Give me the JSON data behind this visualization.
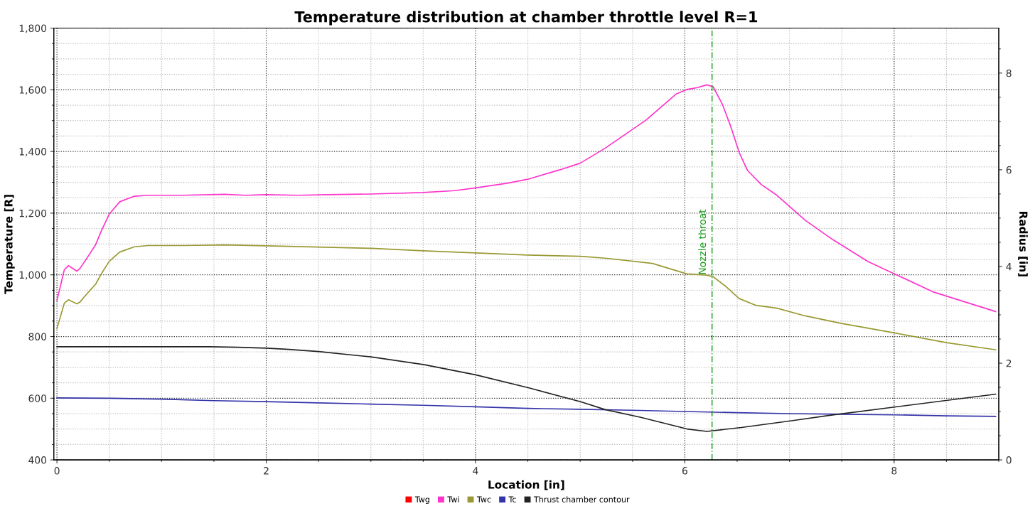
{
  "chart_data": {
    "type": "line",
    "title": "Temperature distribution at chamber throttle level R=1",
    "xlabel": "Location [in]",
    "ylabel": "Temperature [R]",
    "y2label": "Radius [in]",
    "xlim": [
      -0.03,
      9.0
    ],
    "xticks": [
      0,
      2,
      4,
      6,
      8
    ],
    "ylim": [
      400,
      1800
    ],
    "yticks": [
      {
        "value": 400,
        "label": "400"
      },
      {
        "value": 600,
        "label": "600"
      },
      {
        "value": 800,
        "label": "800"
      },
      {
        "value": 1000,
        "label": "1,000"
      },
      {
        "value": 1200,
        "label": "1,200"
      },
      {
        "value": 1400,
        "label": "1,400"
      },
      {
        "value": 1600,
        "label": "1,600"
      },
      {
        "value": 1800,
        "label": "1,800"
      }
    ],
    "y2lim": [
      0,
      8.93
    ],
    "y2ticks": [
      0,
      2,
      4,
      6,
      8
    ],
    "grid": true,
    "legend": "bottom",
    "marker": "none",
    "line_style": "solid",
    "ref_lines": [
      {
        "axis": "x",
        "value": 6.26,
        "label": "Nozzle throat",
        "color": "#119911",
        "line_style": "dashed"
      }
    ],
    "series": [
      {
        "name": "Twg",
        "color": "#ff0000"
      },
      {
        "name": "Twi",
        "color": "#ff33cc",
        "x": [
          0,
          0.07,
          0.11,
          0.19,
          0.22,
          0.29,
          0.37,
          0.42,
          0.5,
          0.6,
          0.74,
          0.87,
          1.2,
          1.6,
          1.8,
          2.0,
          2.3,
          2.6,
          3.0,
          3.5,
          3.8,
          4.0,
          4.3,
          4.5,
          4.8,
          5.0,
          5.24,
          5.63,
          5.92,
          6.02,
          6.12,
          6.21,
          6.27,
          6.36,
          6.44,
          6.52,
          6.6,
          6.73,
          6.88,
          7.15,
          7.41,
          7.75,
          8.03,
          8.37,
          8.97
        ],
        "values": [
          917,
          1016,
          1030,
          1012,
          1021,
          1056,
          1098,
          1139,
          1197,
          1237,
          1255,
          1258,
          1258,
          1261,
          1258,
          1260,
          1258,
          1260,
          1262,
          1267,
          1273,
          1282,
          1297,
          1310,
          1340,
          1362,
          1411,
          1502,
          1587,
          1601,
          1607,
          1616,
          1610,
          1552,
          1480,
          1396,
          1338,
          1293,
          1258,
          1177,
          1115,
          1043,
          999,
          945,
          881
        ]
      },
      {
        "name": "Twc",
        "color": "#999933",
        "x": [
          0,
          0.07,
          0.11,
          0.19,
          0.22,
          0.29,
          0.37,
          0.42,
          0.5,
          0.6,
          0.74,
          0.87,
          1.2,
          1.6,
          2.0,
          2.5,
          3.0,
          3.5,
          4.0,
          4.5,
          5.0,
          5.24,
          5.69,
          6.02,
          6.21,
          6.27,
          6.39,
          6.52,
          6.68,
          6.88,
          7.15,
          7.49,
          8.03,
          8.5,
          8.97
        ],
        "values": [
          826,
          908,
          919,
          906,
          912,
          940,
          970,
          1001,
          1044,
          1074,
          1091,
          1095,
          1095,
          1097,
          1094,
          1090,
          1086,
          1078,
          1071,
          1064,
          1060,
          1054,
          1037,
          1003,
          999,
          994,
          963,
          923,
          901,
          892,
          867,
          843,
          810,
          780,
          757
        ]
      },
      {
        "name": "Tc",
        "color": "#3333aa",
        "x": [
          0,
          0.5,
          1.0,
          1.5,
          2.0,
          2.5,
          3.0,
          3.5,
          4.0,
          4.5,
          5.0,
          5.5,
          6.0,
          6.5,
          7.0,
          7.5,
          8.0,
          8.5,
          8.97
        ],
        "values": [
          601,
          600,
          597,
          592,
          589,
          585,
          581,
          577,
          572,
          567,
          564,
          561,
          557,
          553,
          550,
          548,
          546,
          543,
          541
        ]
      },
      {
        "name": "Thrust chamber contour",
        "color": "#222222",
        "axis": "y2",
        "x": [
          0,
          1.45,
          1.73,
          2.0,
          2.19,
          2.5,
          3.0,
          3.51,
          4.0,
          4.51,
          5.01,
          5.24,
          5.58,
          6.02,
          6.21,
          6.54,
          7.02,
          7.41,
          8.03,
          8.97
        ],
        "values": [
          2.34,
          2.34,
          2.33,
          2.31,
          2.29,
          2.24,
          2.13,
          1.97,
          1.76,
          1.49,
          1.2,
          1.04,
          0.88,
          0.64,
          0.59,
          0.67,
          0.81,
          0.93,
          1.1,
          1.36
        ]
      }
    ]
  }
}
